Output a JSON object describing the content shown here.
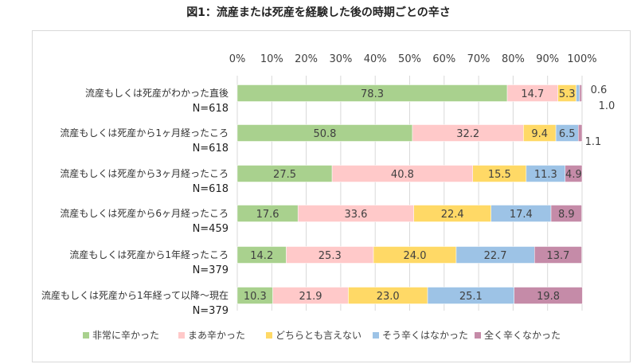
{
  "title": "図1：流産または死産を経験した後の時期ごとの辛さ",
  "chart_data": {
    "type": "bar",
    "orientation": "horizontal",
    "stacked": "100%",
    "xlim": [
      0,
      100
    ],
    "x_ticks": [
      "0%",
      "10%",
      "20%",
      "30%",
      "40%",
      "50%",
      "60%",
      "70%",
      "80%",
      "90%",
      "100%"
    ],
    "grid": true,
    "legend_position": "bottom",
    "categories": [
      {
        "label": "流産もしくは死産がわかった直後",
        "n": "N=618"
      },
      {
        "label": "流産もしくは死産から1ヶ月経ったころ",
        "n": "N=618"
      },
      {
        "label": "流産もしくは死産から3ヶ月経ったころ",
        "n": "N=618"
      },
      {
        "label": "流産もしくは死産から6ヶ月経ったころ",
        "n": "N=459"
      },
      {
        "label": "流産もしくは死産から1年経ったころ",
        "n": "N=379"
      },
      {
        "label": "流産もしくは死産から1年経って以降～現在",
        "n": "N=379"
      }
    ],
    "series": [
      {
        "name": "非常に辛かった",
        "color": "#a9d18e",
        "values": [
          78.3,
          50.8,
          27.5,
          17.6,
          14.2,
          10.3
        ]
      },
      {
        "name": "まあ辛かった",
        "color": "#ffc9c9",
        "values": [
          14.7,
          32.2,
          40.8,
          33.6,
          25.3,
          21.9
        ]
      },
      {
        "name": "どちらとも言えない",
        "color": "#ffd966",
        "values": [
          5.3,
          9.4,
          15.5,
          22.4,
          24.0,
          23.0
        ]
      },
      {
        "name": "そう辛くはなかった",
        "color": "#9dc3e6",
        "values": [
          1.0,
          6.5,
          11.3,
          17.4,
          22.7,
          25.1
        ]
      },
      {
        "name": "全く辛くなかった",
        "color": "#c58ba8",
        "values": [
          0.6,
          1.1,
          4.9,
          8.9,
          13.7,
          19.8
        ]
      }
    ]
  }
}
